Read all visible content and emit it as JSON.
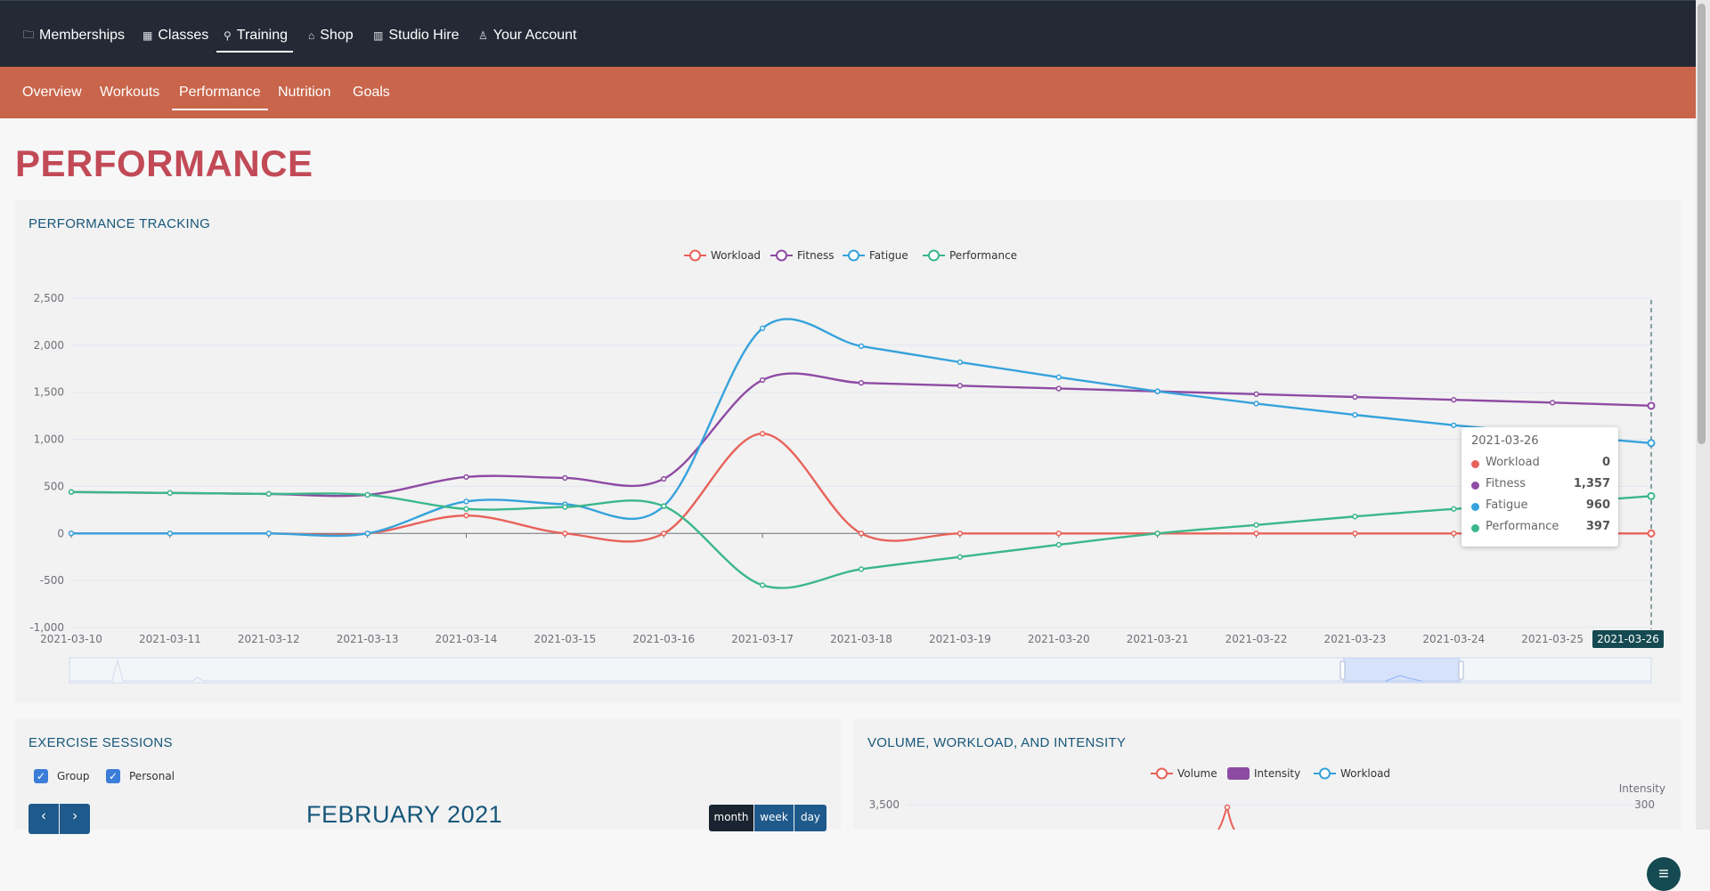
{
  "top_nav": [
    {
      "label": "Memberships",
      "icon": "wallet-icon",
      "glyph": "🗀"
    },
    {
      "label": "Classes",
      "icon": "calendar-icon",
      "glyph": "▦"
    },
    {
      "label": "Training",
      "icon": "running-icon",
      "glyph": "⚲"
    },
    {
      "label": "Shop",
      "icon": "basket-icon",
      "glyph": "⌂"
    },
    {
      "label": "Studio Hire",
      "icon": "building-icon",
      "glyph": "▥"
    },
    {
      "label": "Your Account",
      "icon": "user-icon",
      "glyph": "♙"
    }
  ],
  "top_nav_active": "Training",
  "sub_nav": [
    "Overview",
    "Workouts",
    "Performance",
    "Nutrition",
    "Goals"
  ],
  "sub_nav_active": "Performance",
  "page_title": "PERFORMANCE",
  "performance_card": {
    "title": "PERFORMANCE TRACKING",
    "tooltip": {
      "date": "2021-03-26",
      "rows": [
        {
          "name": "Workload",
          "value": "0"
        },
        {
          "name": "Fitness",
          "value": "1,357"
        },
        {
          "name": "Fatigue",
          "value": "960"
        },
        {
          "name": "Performance",
          "value": "397"
        }
      ]
    },
    "axis_pointer_label": "2021-03-26",
    "menu_icon": "hamburger-icon"
  },
  "chart_data": [
    {
      "type": "line",
      "title": "",
      "xlabel": "",
      "ylabel": "",
      "ylim": [
        -1000,
        2500
      ],
      "yticks": [
        "2,500",
        "2,000",
        "1,500",
        "1,000",
        "500",
        "0",
        "-500",
        "-1,000"
      ],
      "x": [
        "2021-03-10",
        "2021-03-11",
        "2021-03-12",
        "2021-03-13",
        "2021-03-14",
        "2021-03-15",
        "2021-03-16",
        "2021-03-17",
        "2021-03-18",
        "2021-03-19",
        "2021-03-20",
        "2021-03-21",
        "2021-03-22",
        "2021-03-23",
        "2021-03-24",
        "2021-03-25",
        "2021-03-26"
      ],
      "legend_position": "top-center",
      "grid": true,
      "series": [
        {
          "name": "Workload",
          "color": "#e8625a",
          "values": [
            0,
            0,
            0,
            0,
            190,
            0,
            0,
            1060,
            0,
            0,
            0,
            0,
            0,
            0,
            0,
            0,
            0
          ]
        },
        {
          "name": "Fitness",
          "color": "#8e4ba3",
          "values": [
            440,
            430,
            420,
            410,
            600,
            590,
            580,
            1630,
            1600,
            1570,
            1540,
            1510,
            1480,
            1450,
            1420,
            1390,
            1357
          ]
        },
        {
          "name": "Fatigue",
          "color": "#36a2db",
          "values": [
            0,
            0,
            0,
            0,
            340,
            310,
            290,
            2180,
            1990,
            1820,
            1660,
            1510,
            1380,
            1260,
            1150,
            1050,
            960
          ]
        },
        {
          "name": "Performance",
          "color": "#3bb78a",
          "values": [
            440,
            430,
            420,
            410,
            260,
            280,
            290,
            -550,
            -380,
            -250,
            -120,
            0,
            90,
            180,
            260,
            320,
            397
          ]
        }
      ]
    },
    {
      "type": "line",
      "title": "",
      "xlabel": "",
      "ylabel": "",
      "legend_position": "top-center",
      "y_tick_visible": "3,500",
      "y2_label": "Intensity",
      "y2_tick_visible": "300",
      "series": [
        {
          "name": "Volume",
          "color": "#e8625a"
        },
        {
          "name": "Intensity",
          "color": "#8e4ba3"
        },
        {
          "name": "Workload",
          "color": "#36a2db"
        }
      ]
    }
  ],
  "exercise_card": {
    "title": "EXERCISE SESSIONS",
    "filters": [
      {
        "label": "Group",
        "checked": true
      },
      {
        "label": "Personal",
        "checked": true
      }
    ],
    "prev_icon": "‹",
    "next_icon": "›",
    "month_title": "FEBRUARY 2021",
    "views": [
      "month",
      "week",
      "day"
    ],
    "active_view": "month"
  },
  "volume_card": {
    "title": "VOLUME, WORKLOAD, AND INTENSITY"
  },
  "colors": {
    "topbar": "#232a35",
    "subbar": "#c8654b",
    "title_red": "#c24a57",
    "card_title_blue": "#17577a"
  }
}
